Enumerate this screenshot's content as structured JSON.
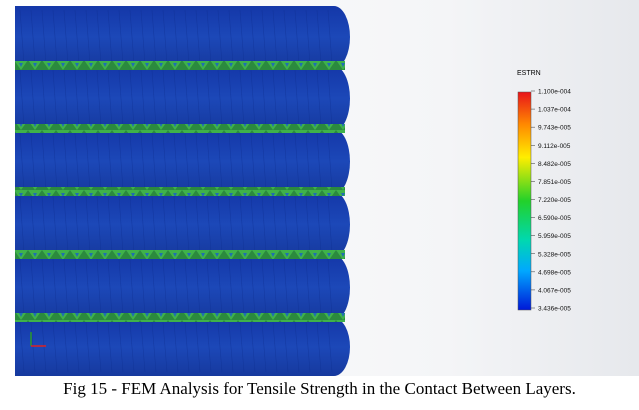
{
  "figure": {
    "legend": {
      "title": "ESTRN",
      "labels": [
        "1.100e-004",
        "1.037e-004",
        "9.743e-005",
        "9.112e-005",
        "8.482e-005",
        "7.851e-005",
        "7.220e-005",
        "6.590e-005",
        "5.959e-005",
        "5.328e-005",
        "4.698e-005",
        "4.067e-005",
        "3.436e-005"
      ]
    },
    "caption": "Fig 15 - FEM Analysis for Tensile Strength in the Contact Between Layers."
  }
}
